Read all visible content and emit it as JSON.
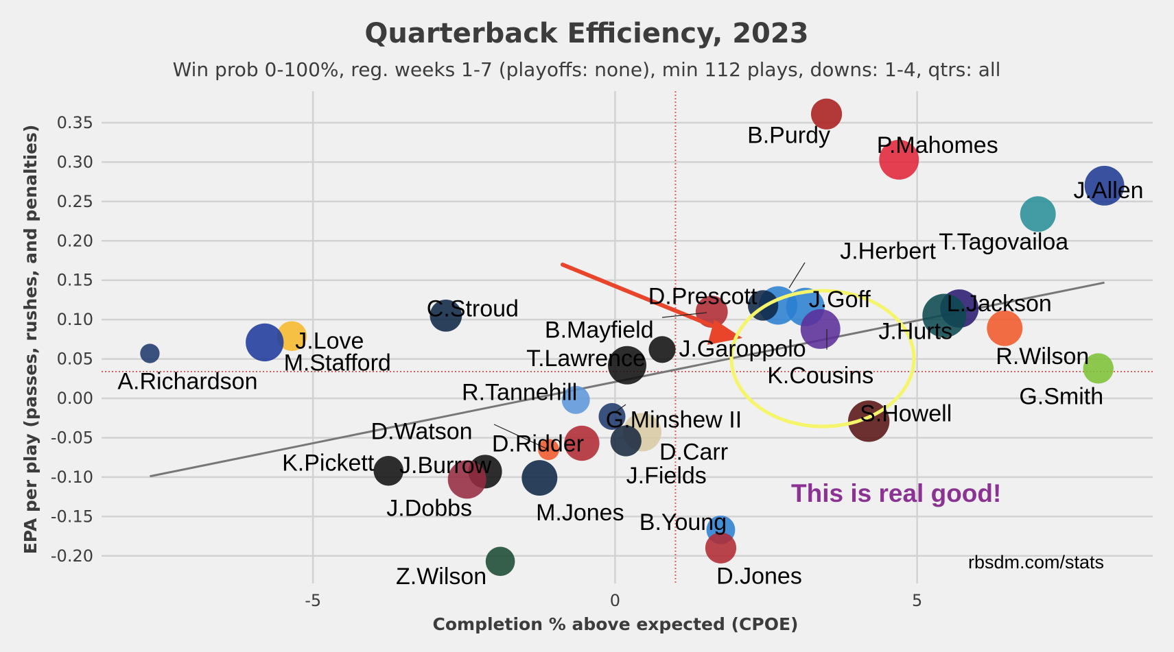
{
  "chart_data": {
    "type": "scatter",
    "title": "Quarterback Efficiency, 2023",
    "subtitle": "Win prob 0-100%, reg. weeks 1-7 (playoffs: none), min 112 plays, downs: 1-4, qtrs: all",
    "xlabel": "Completion % above expected (CPOE)",
    "ylabel": "EPA per play (passes, rushes, and penalties)",
    "xlim": [
      -8.5,
      8.9
    ],
    "ylim": [
      -0.235,
      0.39
    ],
    "x_ticks": [
      -5,
      0,
      5
    ],
    "x_tick_labels": [
      "-5",
      "0",
      "5"
    ],
    "y_ticks": [
      -0.2,
      -0.15,
      -0.1,
      -0.05,
      0.0,
      0.05,
      0.1,
      0.15,
      0.2,
      0.25,
      0.3,
      0.35
    ],
    "y_tick_labels": [
      "-0.20",
      "-0.15",
      "-0.10",
      "-0.05",
      "0.00",
      "0.05",
      "0.10",
      "0.15",
      "0.20",
      "0.25",
      "0.30",
      "0.35"
    ],
    "grid": true,
    "reference_lines": {
      "x": 1.0,
      "y": 0.034,
      "color": "#e05a5a"
    },
    "trend_line": {
      "x1": -7.7,
      "y1": -0.099,
      "x2": 8.1,
      "y2": 0.147,
      "color": "#777777"
    },
    "points": [
      {
        "name": "B.Purdy",
        "x": 3.5,
        "y": 0.361,
        "size": 280,
        "color": "#aa1f1f"
      },
      {
        "name": "P.Mahomes",
        "x": 4.7,
        "y": 0.303,
        "size": 460,
        "color": "#e0263a"
      },
      {
        "name": "J.Allen",
        "x": 8.1,
        "y": 0.27,
        "size": 460,
        "color": "#1f3a93"
      },
      {
        "name": "T.Tagovailoa",
        "x": 7.0,
        "y": 0.234,
        "size": 370,
        "color": "#2a8f99"
      },
      {
        "name": "L.Jackson",
        "x": 5.7,
        "y": 0.114,
        "size": 430,
        "color": "#2a1a70"
      },
      {
        "name": "J.Hurts",
        "x": 5.45,
        "y": 0.105,
        "size": 560,
        "color": "#0d4a50"
      },
      {
        "name": "R.Wilson",
        "x": 6.45,
        "y": 0.089,
        "size": 370,
        "color": "#f0582a"
      },
      {
        "name": "G.Smith",
        "x": 8.0,
        "y": 0.038,
        "size": 270,
        "color": "#7dc136"
      },
      {
        "name": "J.Herbert",
        "x": 2.7,
        "y": 0.118,
        "size": 430,
        "color": "#2a80d0"
      },
      {
        "name": "J.Goff",
        "x": 3.15,
        "y": 0.116,
        "size": 430,
        "color": "#2a80d0"
      },
      {
        "name": "K.Cousins",
        "x": 3.4,
        "y": 0.088,
        "size": 460,
        "color": "#5b2f9a"
      },
      {
        "name": "D.Prescott",
        "x": 2.45,
        "y": 0.118,
        "size": 270,
        "color": "#0f2744"
      },
      {
        "name": "B.Mayfield",
        "x": 1.6,
        "y": 0.11,
        "size": 300,
        "color": "#b02a33"
      },
      {
        "name": "J.Garoppolo",
        "x": 0.78,
        "y": 0.062,
        "size": 210,
        "color": "#111111"
      },
      {
        "name": "T.Lawrence",
        "x": 0.2,
        "y": 0.042,
        "size": 430,
        "color": "#111111"
      },
      {
        "name": "R.Tannehill",
        "x": -0.65,
        "y": -0.002,
        "size": 230,
        "color": "#5d97db"
      },
      {
        "name": "G.Minshew II",
        "x": -0.05,
        "y": -0.023,
        "size": 210,
        "color": "#1f3a6b"
      },
      {
        "name": "D.Carr",
        "x": 0.45,
        "y": -0.043,
        "size": 430,
        "color": "#d8c9a4"
      },
      {
        "name": "J.Fields",
        "x": 0.18,
        "y": -0.054,
        "size": 280,
        "color": "#1a2a40"
      },
      {
        "name": "D.Ridder",
        "x": -0.55,
        "y": -0.057,
        "size": 360,
        "color": "#b02a33"
      },
      {
        "name": "D.Watson",
        "x": -1.1,
        "y": -0.065,
        "size": 130,
        "color": "#f0582a"
      },
      {
        "name": "M.Jones",
        "x": -1.25,
        "y": -0.101,
        "size": 370,
        "color": "#0f2744"
      },
      {
        "name": "J.Burrow",
        "x": -2.15,
        "y": -0.093,
        "size": 330,
        "color": "#111111"
      },
      {
        "name": "J.Dobbs",
        "x": -2.45,
        "y": -0.103,
        "size": 430,
        "color": "#962b42"
      },
      {
        "name": "K.Pickett",
        "x": -3.75,
        "y": -0.092,
        "size": 260,
        "color": "#111111"
      },
      {
        "name": "C.Stroud",
        "x": -2.8,
        "y": 0.105,
        "size": 300,
        "color": "#0f2744"
      },
      {
        "name": "J.Love",
        "x": -5.35,
        "y": 0.079,
        "size": 260,
        "color": "#f5b82a"
      },
      {
        "name": "M.Stafford",
        "x": -5.8,
        "y": 0.071,
        "size": 420,
        "color": "#1f3a9c"
      },
      {
        "name": "A.Richardson",
        "x": -7.7,
        "y": 0.057,
        "size": 110,
        "color": "#1f3a6b"
      },
      {
        "name": "S.Howell",
        "x": 4.2,
        "y": -0.029,
        "size": 500,
        "color": "#5a1414"
      },
      {
        "name": "B.Young",
        "x": 1.75,
        "y": -0.167,
        "size": 240,
        "color": "#2a80d0"
      },
      {
        "name": "D.Jones",
        "x": 1.75,
        "y": -0.19,
        "size": 280,
        "color": "#b02a33"
      },
      {
        "name": "Z.Wilson",
        "x": -1.9,
        "y": -0.207,
        "size": 250,
        "color": "#1a4a32"
      }
    ],
    "source": "rbsdm.com/stats",
    "annotations": {
      "text": "This is real good!",
      "text_color": "#8b3393",
      "circle_color": "#f5f56b",
      "arrow_color": "#e8452a"
    }
  }
}
